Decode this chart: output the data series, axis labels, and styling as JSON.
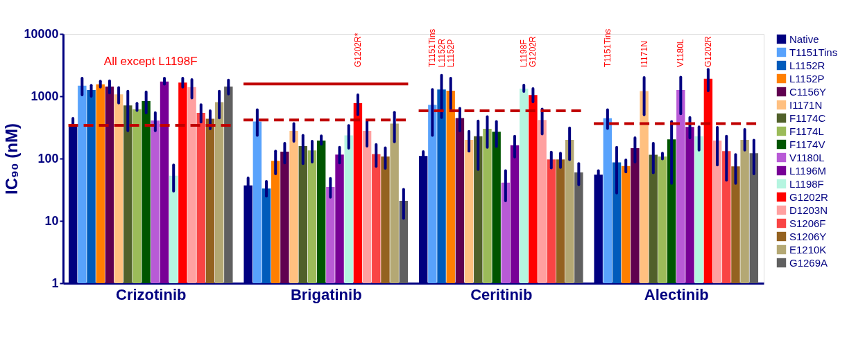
{
  "chart_data": {
    "type": "bar",
    "ylabel": "IC₉₀ (nM)",
    "log": true,
    "ylim": [
      1,
      10000
    ],
    "yticks": [
      1,
      10,
      100,
      1000,
      10000
    ],
    "grid": false,
    "legend": "right",
    "categories": [
      "Crizotinib",
      "Brigatinib",
      "Ceritinib",
      "Alectinib"
    ],
    "series": [
      {
        "name": "Native",
        "color": "#000080",
        "values": [
          327,
          37,
          110,
          55
        ],
        "errors": [
          [
            320,
            440
          ],
          [
            37,
            49
          ],
          [
            110,
            129
          ],
          [
            55,
            64
          ]
        ]
      },
      {
        "name": "T1151Tins",
        "color": "#58a2fc",
        "values": [
          1480,
          393,
          728,
          444
        ],
        "errors": [
          [
            1050,
            1950
          ],
          [
            236,
            608
          ],
          [
            236,
            1285
          ],
          [
            304,
            607
          ]
        ]
      },
      {
        "name": "L1152R",
        "color": "#005bbb",
        "values": [
          1260,
          33,
          1285,
          87
        ],
        "errors": [
          [
            1000,
            1500
          ],
          [
            25,
            43
          ],
          [
            454,
            2170
          ],
          [
            28,
            152
          ]
        ]
      },
      {
        "name": "L1152P",
        "color": "#ff7f00",
        "values": [
          1550,
          92,
          1230,
          76
        ],
        "errors": [
          [
            1400,
            1750
          ],
          [
            57,
            132
          ],
          [
            630,
            1945
          ],
          [
            61,
            95
          ]
        ]
      },
      {
        "name": "C1156Y",
        "color": "#600050",
        "values": [
          1430,
          129,
          448,
          147
        ],
        "errors": [
          [
            1130,
            1770
          ],
          [
            85,
            176
          ],
          [
            279,
            640
          ],
          [
            88,
            215
          ]
        ]
      },
      {
        "name": "I1171N",
        "color": "#ffc080",
        "values": [
          1070,
          279,
          200,
          1213
        ],
        "errors": [
          [
            780,
            1380
          ],
          [
            190,
            365
          ],
          [
            132,
            273
          ],
          [
            506,
            1990
          ]
        ]
      },
      {
        "name": "F1174C",
        "color": "#50602a",
        "values": [
          713,
          158,
          228,
          115
        ],
        "errors": [
          [
            280,
            1200
          ],
          [
            83,
            236
          ],
          [
            67,
            401
          ],
          [
            59,
            176
          ]
        ]
      },
      {
        "name": "F1174L",
        "color": "#9bbb59",
        "values": [
          617,
          135,
          300,
          108
        ],
        "errors": [
          [
            590,
            770
          ],
          [
            88,
            190
          ],
          [
            152,
            471
          ],
          [
            99,
            122
          ]
        ]
      },
      {
        "name": "F1174V",
        "color": "#005500",
        "values": [
          835,
          194,
          269,
          204
        ],
        "errors": [
          [
            540,
            1170
          ],
          [
            170,
            231
          ],
          [
            156,
            393
          ],
          [
            40,
            393
          ]
        ]
      },
      {
        "name": "V1180L",
        "color": "#b85ad6",
        "values": [
          408,
          35,
          41,
          1257
        ],
        "errors": [
          [
            280,
            545
          ],
          [
            24,
            48
          ],
          [
            21,
            64
          ],
          [
            525,
            2017
          ]
        ]
      },
      {
        "name": "L1196M",
        "color": "#780096",
        "values": [
          1720,
          116,
          164,
          323
        ],
        "errors": [
          [
            1560,
            1950
          ],
          [
            85,
            152
          ],
          [
            106,
            228
          ],
          [
            215,
            454
          ]
        ]
      },
      {
        "name": "L1198F",
        "color": "#b5f5e0",
        "values": [
          53,
          236,
          1325,
          228
        ],
        "errors": [
          [
            30,
            79
          ],
          [
            147,
            340
          ],
          [
            1195,
            1510
          ],
          [
            137,
            323
          ]
        ]
      },
      {
        "name": "G1202R",
        "color": "#ff0000",
        "values": [
          1660,
          773,
          1048,
          1903
        ],
        "errors": [
          [
            1400,
            1950
          ],
          [
            507,
            1050
          ],
          [
            813,
            1325
          ],
          [
            1230,
            2700
          ]
        ]
      },
      {
        "name": "D1203N",
        "color": "#ffa0a0",
        "values": [
          1400,
          279,
          416,
          194
        ],
        "errors": [
          [
            940,
            1850
          ],
          [
            158,
            393
          ],
          [
            248,
            621
          ],
          [
            79,
            316
          ]
        ]
      },
      {
        "name": "S1206F",
        "color": "#f94444",
        "values": [
          540,
          118,
          97,
          132
        ],
        "errors": [
          [
            385,
            730
          ],
          [
            75,
            168
          ],
          [
            71,
            127
          ],
          [
            45,
            228
          ]
        ]
      },
      {
        "name": "S1206Y",
        "color": "#946220",
        "values": [
          435,
          108,
          97,
          75
        ],
        "errors": [
          [
            300,
            586
          ],
          [
            70,
            149
          ],
          [
            72,
            122
          ],
          [
            40,
            116
          ]
        ]
      },
      {
        "name": "E1210K",
        "color": "#b4a874",
        "values": [
          807,
          365,
          200,
          200
        ],
        "errors": [
          [
            450,
            1200
          ],
          [
            186,
            552
          ],
          [
            96,
            311
          ],
          [
            137,
            293
          ]
        ]
      },
      {
        "name": "G1269A",
        "color": "#606060",
        "values": [
          1430,
          21,
          60,
          122
        ],
        "errors": [
          [
            1090,
            1810
          ],
          [
            11,
            32
          ],
          [
            38,
            83
          ],
          [
            57,
            197
          ]
        ]
      }
    ],
    "ref_lines": [
      {
        "axis": "y",
        "value": 342,
        "color": "#c00000",
        "line_style": "dashed"
      },
      {
        "axis": "y",
        "value": 416,
        "color": "#c00000",
        "line_style": "dashed"
      },
      {
        "axis": "y",
        "value": 1570,
        "color": "#c00000",
        "line_style": "solid"
      },
      {
        "axis": "y",
        "value": 586,
        "color": "#c00000",
        "line_style": "dashed"
      },
      {
        "axis": "y",
        "value": 365,
        "color": "#c00000",
        "line_style": "dashed"
      }
    ],
    "annotations": [
      "All except L1198F",
      "G1202R*",
      "T1151Tins",
      "L1152R",
      "L1152P",
      "L1198F",
      "G1202R",
      "T1151Tins",
      "I1171N",
      "V1180L",
      "G1202R"
    ]
  }
}
